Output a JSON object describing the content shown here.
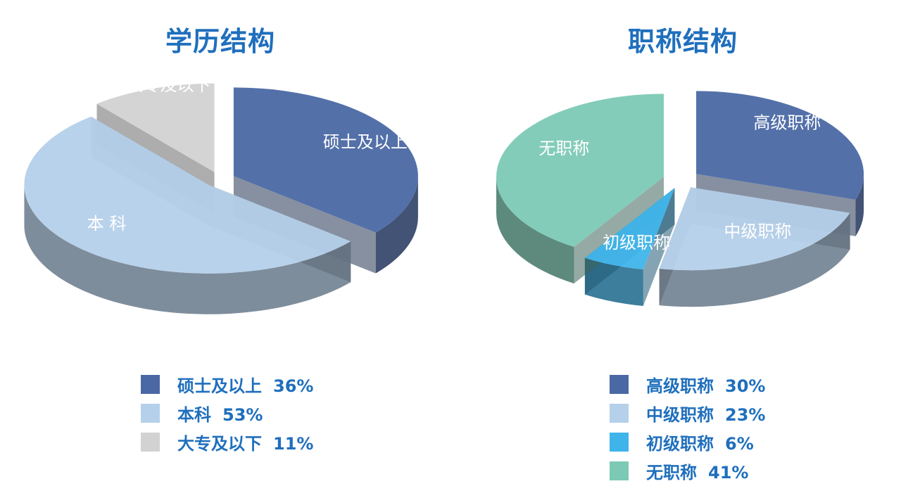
{
  "chart_data": [
    {
      "type": "pie",
      "title": "学历结构",
      "slices": [
        {
          "label": "硕士及以上",
          "value": 36,
          "value_text": "36%",
          "color": "#4a68a4"
        },
        {
          "label": "本科",
          "value": 53,
          "value_text": "53%",
          "color": "#b5d0ea"
        },
        {
          "label": "大专及以下",
          "value": 11,
          "value_text": "11%",
          "color": "#d2d2d2"
        }
      ],
      "slice_labels": [
        "硕士及以上",
        "本 科",
        "大专及以下"
      ],
      "style": "3d-exploded",
      "legend_position": "bottom"
    },
    {
      "type": "pie",
      "title": "职称结构",
      "slices": [
        {
          "label": "高级职称",
          "value": 30,
          "value_text": "30%",
          "color": "#4a68a4"
        },
        {
          "label": "中级职称",
          "value": 23,
          "value_text": "23%",
          "color": "#b5d0ea"
        },
        {
          "label": "初级职称",
          "value": 6,
          "value_text": "6%",
          "color": "#3fb4ea"
        },
        {
          "label": "无职称",
          "value": 41,
          "value_text": "41%",
          "color": "#7cc9b5"
        }
      ],
      "slice_labels": [
        "高级职称",
        "中级职称",
        "初级职称",
        "无职称"
      ],
      "style": "3d-exploded",
      "legend_position": "bottom"
    }
  ]
}
